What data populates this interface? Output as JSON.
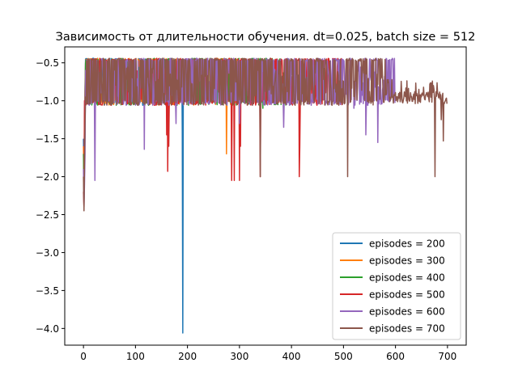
{
  "chart_data": {
    "type": "line",
    "title": "Зависимость от длительности обучения. dt=0.025, batch size = 512",
    "xlabel": "",
    "ylabel": "",
    "xlim": [
      -36,
      736
    ],
    "ylim": [
      -4.22,
      -0.29
    ],
    "xticks": [
      0,
      100,
      200,
      300,
      400,
      500,
      600,
      700
    ],
    "xtick_labels": [
      "0",
      "100",
      "200",
      "300",
      "400",
      "500",
      "600",
      "700"
    ],
    "yticks": [
      -0.5,
      -1.0,
      -1.5,
      -2.0,
      -2.5,
      -3.0,
      -3.5,
      -4.0
    ],
    "ytick_labels": [
      "−0.5",
      "−1.0",
      "−1.5",
      "−2.0",
      "−2.5",
      "−3.0",
      "−3.5",
      "−4.0"
    ],
    "grid": false,
    "legend_position": "lower-right",
    "series": [
      {
        "name": "episodes = 200",
        "color": "#1f77b4",
        "n": 200,
        "start": [
          -1.5,
          -2.1,
          -1.2,
          -0.8,
          -0.45
        ],
        "spikes": [
          [
            150,
            -1.0
          ],
          [
            160,
            -1.1
          ],
          [
            170,
            -1.0
          ],
          [
            185,
            -0.7
          ],
          [
            190,
            -1.4
          ],
          [
            191,
            -4.06
          ],
          [
            195,
            -1.0
          ],
          [
            198,
            -0.6
          ]
        ]
      },
      {
        "name": "episodes = 300",
        "color": "#ff7f0e",
        "n": 300,
        "start": [
          -1.6,
          -2.2,
          -1.8,
          -0.9,
          -0.5
        ],
        "spikes": [
          [
            58,
            -1.05
          ],
          [
            120,
            -0.9
          ],
          [
            220,
            -0.85
          ],
          [
            250,
            -0.55
          ],
          [
            252,
            -0.8
          ],
          [
            275,
            -1.7
          ],
          [
            285,
            -0.9
          ]
        ]
      },
      {
        "name": "episodes = 400",
        "color": "#2ca02c",
        "n": 400,
        "start": [
          -1.7,
          -2.3,
          -1.9,
          -1.3,
          -0.5
        ],
        "spikes": [
          [
            230,
            -0.9
          ],
          [
            300,
            -1.05
          ],
          [
            345,
            -1.1
          ],
          [
            380,
            -1.05
          ]
        ]
      },
      {
        "name": "episodes = 500",
        "color": "#d62728",
        "n": 500,
        "start": [
          -2.2,
          -2.4,
          -1.0,
          -1.2,
          -0.7
        ],
        "spikes": [
          [
            160,
            -1.45
          ],
          [
            162,
            -1.93
          ],
          [
            164,
            -1.6
          ],
          [
            285,
            -2.05
          ],
          [
            290,
            -2.05
          ],
          [
            300,
            -2.05
          ],
          [
            302,
            -1.6
          ],
          [
            340,
            -2.0
          ],
          [
            415,
            -2.0
          ],
          [
            416,
            -1.6
          ]
        ]
      },
      {
        "name": "episodes = 600",
        "color": "#9467bd",
        "n": 600,
        "start": [
          -1.9,
          -2.4,
          -2.1,
          -1.7,
          -0.6
        ],
        "spikes": [
          [
            22,
            -2.05
          ],
          [
            117,
            -1.64
          ],
          [
            178,
            -1.3
          ],
          [
            300,
            -1.3
          ],
          [
            385,
            -1.35
          ],
          [
            520,
            -1.1
          ],
          [
            543,
            -1.45
          ],
          [
            566,
            -1.55
          ],
          [
            590,
            -1.0
          ]
        ]
      },
      {
        "name": "episodes = 700",
        "color": "#8c564b",
        "n": 700,
        "start": [
          -2.0,
          -2.45,
          -1.8,
          -1.3,
          -0.95
        ],
        "spikes": [
          [
            340,
            -2.0
          ],
          [
            508,
            -2.0
          ],
          [
            676,
            -2.0
          ],
          [
            688,
            -1.25
          ],
          [
            692,
            -1.53
          ],
          [
            696,
            -1.0
          ]
        ]
      }
    ]
  }
}
